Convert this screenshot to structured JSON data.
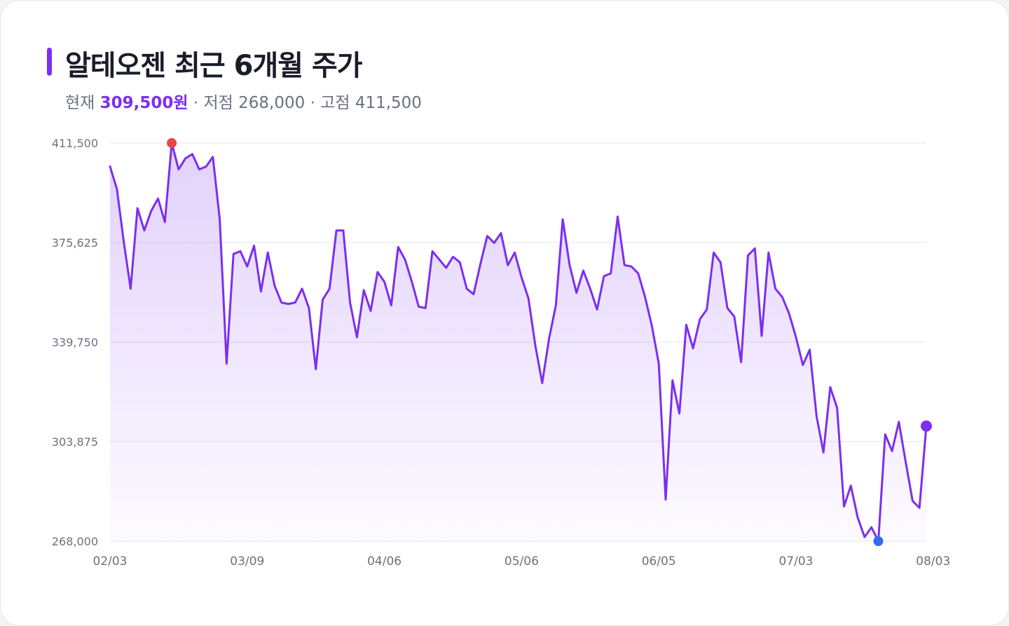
{
  "header": {
    "title": "알테오젠 최근 6개월 주가",
    "current_label": "현재",
    "current_value": "309,500원",
    "low_part": "· 저점 268,000",
    "high_part": "· 고점 411,500"
  },
  "colors": {
    "line": "#7b2ff0",
    "max_marker": "#e5484d",
    "min_marker": "#2b6cf0",
    "last_marker": "#7b2ff0"
  },
  "chart_data": {
    "type": "area",
    "title": "알테오젠 최근 6개월 주가",
    "xlabel": "",
    "ylabel": "",
    "ylim": [
      268000,
      411500
    ],
    "y_ticks": [
      268000,
      303875,
      339750,
      375625,
      411500
    ],
    "y_tick_labels": [
      "268,000",
      "303,875",
      "339,750",
      "375,625",
      "411,500"
    ],
    "x_ticks": [
      0,
      20,
      40,
      60,
      80,
      100,
      120
    ],
    "x_tick_labels": [
      "02/03",
      "03/09",
      "04/06",
      "05/06",
      "06/05",
      "07/03",
      "08/03"
    ],
    "grid": true,
    "max_point": {
      "index": 9,
      "value": 411500
    },
    "min_point": {
      "index": 112,
      "value": 268000
    },
    "last_value": 309500,
    "values": [
      403000,
      395000,
      376000,
      359000,
      388000,
      380000,
      387000,
      391500,
      383000,
      411500,
      402000,
      406000,
      407500,
      402000,
      403000,
      406500,
      384000,
      332000,
      371500,
      372500,
      367000,
      374500,
      358000,
      372000,
      360000,
      354000,
      353500,
      354000,
      359000,
      352000,
      330000,
      355000,
      359000,
      380000,
      380000,
      354000,
      341500,
      358500,
      351000,
      365000,
      361500,
      353000,
      374000,
      369500,
      361500,
      352500,
      352000,
      372500,
      369500,
      366500,
      370500,
      368500,
      359000,
      357000,
      368000,
      378000,
      375500,
      379000,
      367500,
      372000,
      363000,
      355500,
      338500,
      325000,
      341000,
      353000,
      384000,
      367500,
      357500,
      365500,
      359000,
      351500,
      363500,
      364500,
      385000,
      367500,
      367000,
      364500,
      356000,
      345500,
      332000,
      283000,
      326000,
      314000,
      346000,
      337500,
      348000,
      351500,
      372000,
      368500,
      352000,
      349000,
      332500,
      371000,
      373500,
      342000,
      372000,
      359000,
      356000,
      350000,
      341500,
      331500,
      337000,
      313000,
      300000,
      323500,
      316000,
      280500,
      288000,
      276500,
      269500,
      273000,
      268000,
      306500,
      300500,
      311000,
      296500,
      282500,
      280000,
      309500
    ]
  }
}
